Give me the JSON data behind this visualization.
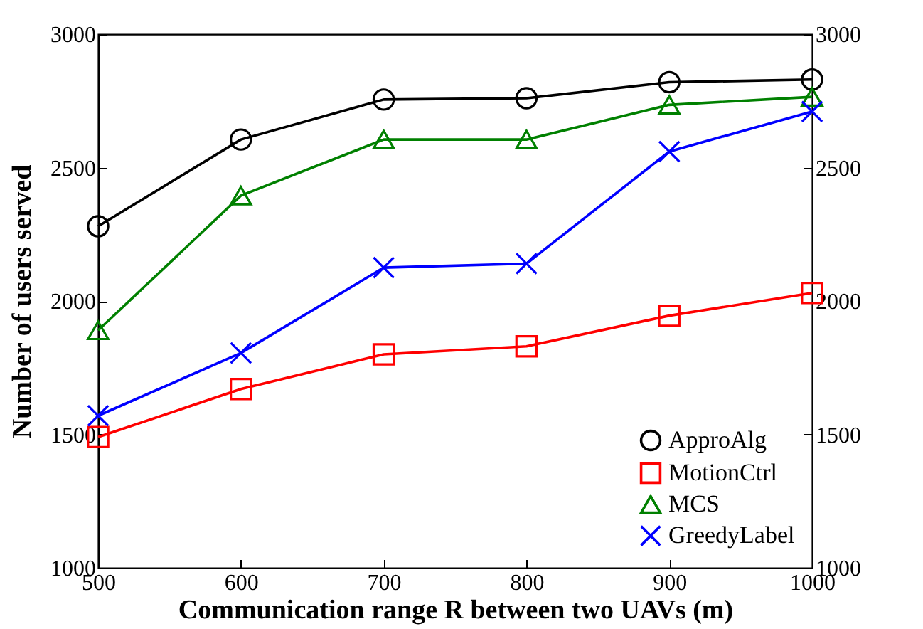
{
  "chart_data": {
    "type": "line",
    "xlabel": "Communication range R between two UAVs (m)",
    "ylabel": "Number of users served",
    "x": [
      500,
      600,
      700,
      800,
      900,
      1000
    ],
    "series": [
      {
        "name": "ApproAlg",
        "color": "#000000",
        "marker": "circle",
        "values": [
          2280,
          2605,
          2755,
          2760,
          2820,
          2830
        ]
      },
      {
        "name": "MotionCtrl",
        "color": "#ff0000",
        "marker": "square",
        "values": [
          1490,
          1670,
          1800,
          1830,
          1945,
          2030
        ]
      },
      {
        "name": "MCS",
        "color": "#008000",
        "marker": "triangle",
        "values": [
          1890,
          2395,
          2605,
          2605,
          2735,
          2765
        ]
      },
      {
        "name": "GreedyLabel",
        "color": "#0000ff",
        "marker": "cross",
        "values": [
          1570,
          1805,
          2125,
          2140,
          2560,
          2710
        ]
      }
    ],
    "xlim": [
      500,
      1000
    ],
    "xticks": [
      500,
      600,
      700,
      800,
      900,
      1000
    ],
    "ylim": [
      1000,
      3000
    ],
    "yticks": [
      1000,
      1500,
      2000,
      2500,
      3000
    ],
    "y2lim": [
      1000,
      3000
    ],
    "y2ticks": [
      1000,
      1500,
      2000,
      2500,
      3000
    ],
    "legend": "bottom right",
    "grid": false
  }
}
